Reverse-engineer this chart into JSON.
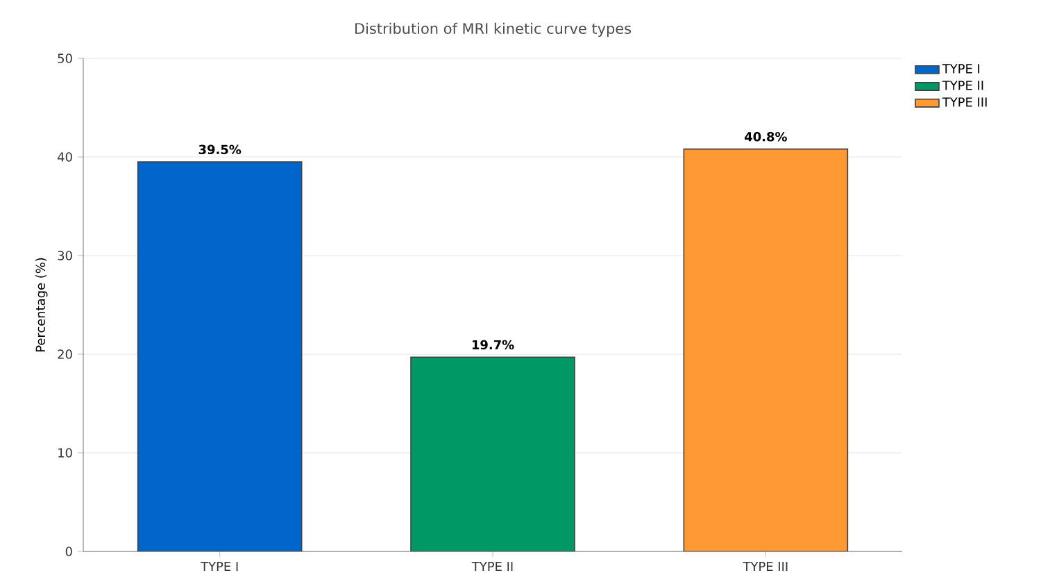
{
  "chart_data": {
    "type": "bar",
    "title": "Distribution of MRI kinetic curve types",
    "ylabel": "Percentage (%)",
    "categories": [
      "TYPE I",
      "TYPE II",
      "TYPE III"
    ],
    "series": [
      {
        "name": "TYPE I",
        "color": "#0066cc",
        "values": [
          39.5,
          null,
          null
        ],
        "value_labels": [
          "39.5%",
          null,
          null
        ]
      },
      {
        "name": "TYPE II",
        "color": "#009966",
        "values": [
          null,
          19.7,
          null
        ],
        "value_labels": [
          null,
          "19.7%",
          null
        ]
      },
      {
        "name": "TYPE III",
        "color": "#ff9933",
        "values": [
          null,
          null,
          40.8
        ],
        "value_labels": [
          null,
          null,
          "40.8%"
        ]
      }
    ],
    "ylim": [
      0,
      50
    ],
    "yticks": [
      0,
      10,
      20,
      30,
      40,
      50
    ],
    "grid": "y",
    "legend": "top right"
  }
}
